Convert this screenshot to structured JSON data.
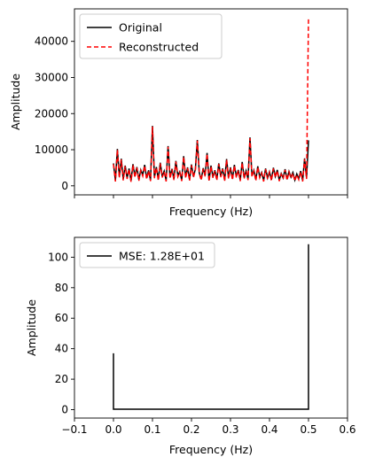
{
  "chart_data": [
    {
      "type": "line",
      "xlabel": "Frequency (Hz)",
      "ylabel": "Amplitude",
      "xlim": [
        -0.1,
        0.6
      ],
      "ylim": [
        -2500,
        49000
      ],
      "yticks": [
        0,
        10000,
        20000,
        30000,
        40000
      ],
      "ytick_labels": [
        "0",
        "10000",
        "20000",
        "30000",
        "40000"
      ],
      "xticks": [
        -0.1,
        0.0,
        0.1,
        0.2,
        0.3,
        0.4,
        0.5,
        0.6
      ],
      "xtick_labels_visible": false,
      "legend": "top-left",
      "series": [
        {
          "name": "Original",
          "style": "solid",
          "color": "#000000",
          "x": [
            0.0,
            0.005,
            0.01,
            0.015,
            0.02,
            0.025,
            0.03,
            0.035,
            0.04,
            0.045,
            0.05,
            0.055,
            0.06,
            0.065,
            0.07,
            0.075,
            0.08,
            0.085,
            0.09,
            0.095,
            0.1,
            0.105,
            0.11,
            0.115,
            0.12,
            0.125,
            0.13,
            0.135,
            0.14,
            0.145,
            0.15,
            0.155,
            0.16,
            0.165,
            0.17,
            0.175,
            0.18,
            0.185,
            0.19,
            0.195,
            0.2,
            0.205,
            0.21,
            0.215,
            0.22,
            0.225,
            0.23,
            0.235,
            0.24,
            0.245,
            0.25,
            0.255,
            0.26,
            0.265,
            0.27,
            0.275,
            0.28,
            0.285,
            0.29,
            0.295,
            0.3,
            0.305,
            0.31,
            0.315,
            0.32,
            0.325,
            0.33,
            0.335,
            0.34,
            0.345,
            0.35,
            0.355,
            0.36,
            0.365,
            0.37,
            0.375,
            0.38,
            0.385,
            0.39,
            0.395,
            0.4,
            0.405,
            0.41,
            0.415,
            0.42,
            0.425,
            0.43,
            0.435,
            0.44,
            0.445,
            0.45,
            0.455,
            0.46,
            0.465,
            0.47,
            0.475,
            0.48,
            0.485,
            0.49,
            0.495,
            0.5
          ],
          "values": [
            6200,
            1500,
            10200,
            2500,
            7500,
            1800,
            5600,
            2200,
            4800,
            1400,
            6000,
            2600,
            5200,
            1700,
            4400,
            3000,
            5800,
            2100,
            4300,
            1600,
            16600,
            2400,
            5200,
            1800,
            6400,
            2600,
            4100,
            1500,
            11000,
            2300,
            4700,
            1900,
            6900,
            2800,
            3900,
            1600,
            8200,
            2400,
            5100,
            1700,
            5900,
            2600,
            4600,
            12700,
            3600,
            1800,
            4900,
            2900,
            9100,
            1500,
            5600,
            2500,
            4300,
            1800,
            6200,
            2700,
            4800,
            1600,
            7400,
            2300,
            5100,
            1900,
            5800,
            2600,
            4400,
            1600,
            6600,
            2300,
            4200,
            1900,
            13400,
            2800,
            4300,
            1700,
            5400,
            2500,
            3700,
            1500,
            4800,
            2200,
            3900,
            1700,
            5000,
            2600,
            4400,
            1600,
            3400,
            2200,
            4600,
            1800,
            4000,
            2400,
            3700,
            1600,
            3300,
            2000,
            4100,
            1500,
            7600,
            2200,
            12600
          ]
        },
        {
          "name": "Reconstructed",
          "style": "dashed",
          "color": "#ff0000",
          "x": [
            0.0,
            0.005,
            0.01,
            0.015,
            0.02,
            0.025,
            0.03,
            0.035,
            0.04,
            0.045,
            0.05,
            0.055,
            0.06,
            0.065,
            0.07,
            0.075,
            0.08,
            0.085,
            0.09,
            0.095,
            0.1,
            0.105,
            0.11,
            0.115,
            0.12,
            0.125,
            0.13,
            0.135,
            0.14,
            0.145,
            0.15,
            0.155,
            0.16,
            0.165,
            0.17,
            0.175,
            0.18,
            0.185,
            0.19,
            0.195,
            0.2,
            0.205,
            0.21,
            0.215,
            0.22,
            0.225,
            0.23,
            0.235,
            0.24,
            0.245,
            0.25,
            0.255,
            0.26,
            0.265,
            0.27,
            0.275,
            0.28,
            0.285,
            0.29,
            0.295,
            0.3,
            0.305,
            0.31,
            0.315,
            0.32,
            0.325,
            0.33,
            0.335,
            0.34,
            0.345,
            0.35,
            0.355,
            0.36,
            0.365,
            0.37,
            0.375,
            0.38,
            0.385,
            0.39,
            0.395,
            0.4,
            0.405,
            0.41,
            0.415,
            0.42,
            0.425,
            0.43,
            0.435,
            0.44,
            0.445,
            0.45,
            0.455,
            0.46,
            0.465,
            0.47,
            0.475,
            0.48,
            0.485,
            0.49,
            0.495,
            0.5
          ],
          "values": [
            6000,
            1200,
            10000,
            2200,
            7300,
            1500,
            5400,
            1900,
            4600,
            1100,
            5800,
            2300,
            5000,
            1400,
            4200,
            2700,
            5600,
            1800,
            4100,
            1300,
            16400,
            2100,
            5000,
            1500,
            6200,
            2300,
            3900,
            1200,
            10800,
            2000,
            4500,
            1600,
            6700,
            2500,
            3700,
            1300,
            8000,
            2100,
            4900,
            1400,
            5700,
            2300,
            4400,
            12500,
            3400,
            1500,
            4700,
            2600,
            8900,
            1200,
            5400,
            2200,
            4100,
            1500,
            6000,
            2400,
            4600,
            1300,
            7200,
            2000,
            4900,
            1600,
            5600,
            2300,
            4200,
            1300,
            6400,
            2000,
            4000,
            1600,
            13200,
            2500,
            4100,
            1400,
            5200,
            2200,
            3500,
            1200,
            4600,
            1900,
            3700,
            1400,
            4800,
            2300,
            4200,
            1300,
            3200,
            1900,
            4400,
            1500,
            3800,
            2100,
            3500,
            1300,
            3100,
            1700,
            3900,
            1200,
            7400,
            1900,
            46600
          ]
        }
      ]
    },
    {
      "type": "line",
      "xlabel": "Frequency (Hz)",
      "ylabel": "Amplitude",
      "xlim": [
        -0.1,
        0.6
      ],
      "ylim": [
        -5.5,
        113
      ],
      "yticks": [
        0,
        20,
        40,
        60,
        80,
        100
      ],
      "ytick_labels": [
        "0",
        "20",
        "40",
        "60",
        "80",
        "100"
      ],
      "xticks": [
        -0.1,
        0.0,
        0.1,
        0.2,
        0.3,
        0.4,
        0.5,
        0.6
      ],
      "xtick_labels": [
        "−0.1",
        "0.0",
        "0.1",
        "0.2",
        "0.3",
        "0.4",
        "0.5",
        "0.6"
      ],
      "legend": "top-left",
      "series": [
        {
          "name": "MSE: 1.28E+01",
          "style": "solid",
          "color": "#000000",
          "x": [
            0.0,
            0.0,
            0.005,
            0.495,
            0.5,
            0.5
          ],
          "values": [
            37,
            0.3,
            0.3,
            0.3,
            0.3,
            108.5
          ]
        }
      ]
    }
  ]
}
